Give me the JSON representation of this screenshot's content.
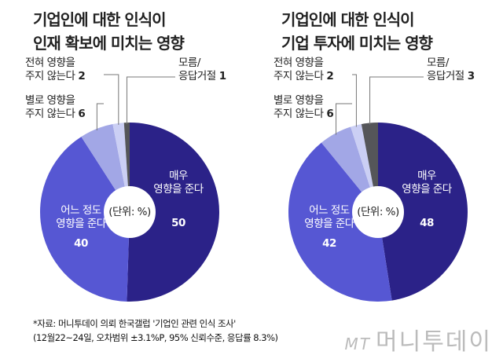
{
  "chart_data": [
    {
      "type": "pie",
      "title": [
        "기업인에 대한 인식이",
        "인재 확보에 미치는 영향"
      ],
      "unit_label": "(단위: %)",
      "slices": [
        {
          "label": [
            "매우",
            "영향을 준다"
          ],
          "value": 50,
          "color": "#2b2288"
        },
        {
          "label": [
            "어느 정도",
            "영향을 준다"
          ],
          "value": 40,
          "color": "#5657d3"
        },
        {
          "label": [
            "별로 영향을",
            "주지 않는다"
          ],
          "value": 6,
          "color": "#a2a7e6"
        },
        {
          "label": [
            "전혀 영향을",
            "주지 않는다"
          ],
          "value": 2,
          "color": "#cbcff4"
        },
        {
          "label": [
            "모름/",
            "응답거절"
          ],
          "value": 1,
          "color": "#555659"
        }
      ]
    },
    {
      "type": "pie",
      "title": [
        "기업인에 대한 인식이",
        "기업 투자에 미치는 영향"
      ],
      "unit_label": "(단위: %)",
      "slices": [
        {
          "label": [
            "매우",
            "영향을 준다"
          ],
          "value": 48,
          "color": "#2b2288"
        },
        {
          "label": [
            "어느 정도",
            "영향을 준다"
          ],
          "value": 42,
          "color": "#5657d3"
        },
        {
          "label": [
            "별로 영향을",
            "주지 않는다"
          ],
          "value": 6,
          "color": "#a2a7e6"
        },
        {
          "label": [
            "전혀 영향을",
            "주지 않는다"
          ],
          "value": 2,
          "color": "#cbcff4"
        },
        {
          "label": [
            "모름/",
            "응답거절"
          ],
          "value": 3,
          "color": "#555659"
        }
      ]
    }
  ],
  "source": [
    "*자료: 머니투데이 의뢰 한국갤럽 '기업인 관련 인식 조사'",
    "(12월22~24일, 오차범위 ±3.1%P, 95% 신뢰수준, 응답률 8.3%)"
  ],
  "logo": {
    "mark": "MT",
    "name": "머니투데이"
  }
}
